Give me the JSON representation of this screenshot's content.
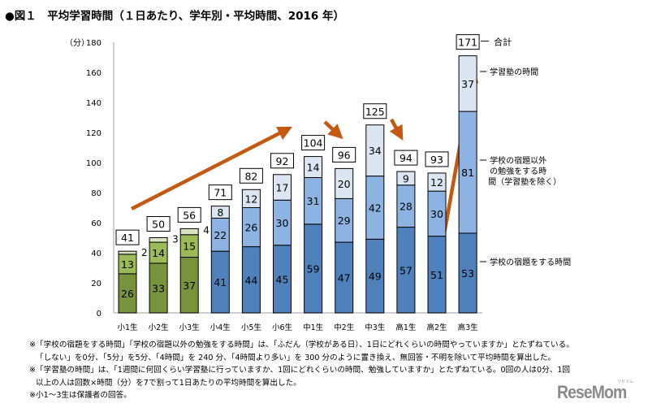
{
  "title": "●図１　平均学習時間（１日あたり、学年別・平均時間、2016 年）",
  "chart_data": {
    "type": "bar",
    "stacked": true,
    "ylabel": "（分）",
    "ylim": [
      0,
      180
    ],
    "yticks": [
      0,
      20,
      40,
      60,
      80,
      100,
      120,
      140,
      160,
      180
    ],
    "grid": false,
    "categories": [
      "小1生",
      "小2生",
      "小3生",
      "小4生",
      "小5生",
      "小6生",
      "中1生",
      "中2生",
      "中3生",
      "高1生",
      "高2生",
      "高3生"
    ],
    "series": [
      {
        "name": "学校の宿題をする時間",
        "values": [
          26,
          33,
          37,
          41,
          44,
          45,
          59,
          47,
          49,
          57,
          51,
          53
        ]
      },
      {
        "name": "学校の宿題以外の勉強をする時間（学習塾を除く）",
        "values": [
          13,
          14,
          15,
          22,
          26,
          30,
          31,
          29,
          42,
          28,
          30,
          81
        ]
      },
      {
        "name": "学習塾の時間",
        "values": [
          2,
          3,
          4,
          8,
          12,
          17,
          14,
          20,
          34,
          9,
          12,
          37
        ]
      }
    ],
    "totals": [
      41,
      50,
      56,
      71,
      82,
      92,
      104,
      96,
      125,
      94,
      93,
      171
    ],
    "total_label": "合計",
    "legend_placement": "right",
    "colors": {
      "elementary_low": [
        "#77933c",
        "#9bbb59",
        "#d7e4bd"
      ],
      "upper": [
        "#4f81bd",
        "#8db3e2",
        "#dce6f2"
      ],
      "arrow": "#c65911"
    }
  },
  "notes": [
    "※「学校の宿題をする時間」「学校の宿題以外の勉強をする時間」は、「ふだん（学校がある日）、1日にどれくらいの時間やっていますか」とたずねている。",
    "「しない」を0分、「5分」を5分、「4時間」を 240 分、「4時間より多い」を 300 分のように置き換え、無回答・不明を除いて平均時間を算出した。",
    "※「学習塾の時間」は、「1週間に何回くらい学習塾に行っていますか、1回にどれくらいの時間、勉強していますか」とたずねている。0回の人は0分、1回",
    "以上の人は回数×時間（分）を7で割って1日あたりの平均時間を算出した。",
    "※小1～3生は保護者の回答。"
  ],
  "logo": "ReseMom",
  "logo_sub": "リセマム"
}
